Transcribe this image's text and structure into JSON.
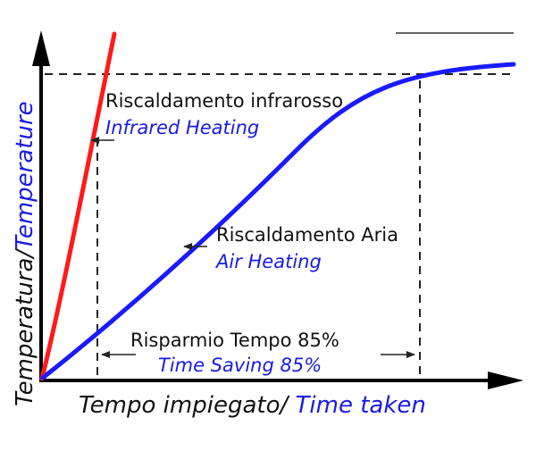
{
  "diagram": {
    "y_axis_label": {
      "it": "Temperatura/",
      "en": "Temperature"
    },
    "x_axis_label": {
      "it": "Tempo impiegato/ ",
      "en": "Time taken"
    },
    "infrared": {
      "it": "Riscaldamento infrarosso",
      "en": "Infrared Heating",
      "color": "#ff1a1a"
    },
    "air": {
      "it": "Riscaldamento Aria",
      "en": "Air Heating",
      "color": "#1a1aff"
    },
    "saving": {
      "it": "Risparmio Tempo 85%",
      "en": "Time Saving 85%"
    },
    "colors": {
      "italian_text": "#111111",
      "english_text": "#1a1ae6",
      "axis": "#000000",
      "guide": "#222222"
    }
  }
}
